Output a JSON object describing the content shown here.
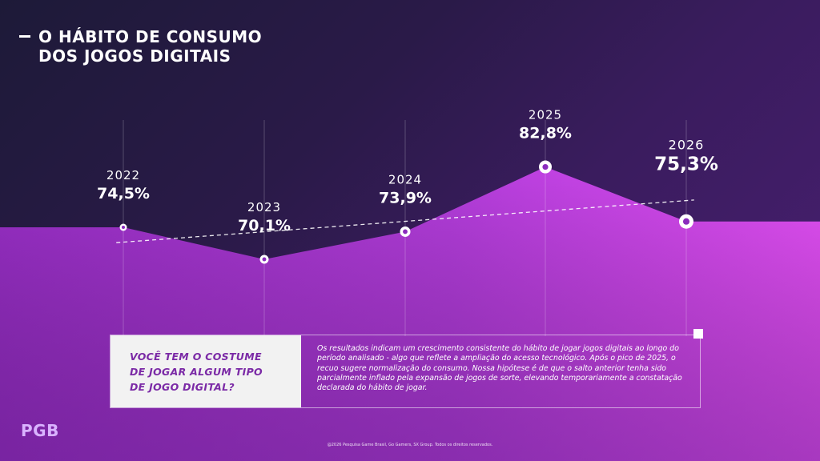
{
  "title": {
    "line1": "O HÁBITO DE CONSUMO",
    "line2": "DOS JOGOS DIGITAIS"
  },
  "chart_data": {
    "type": "area",
    "x": [
      "2022",
      "2023",
      "2024",
      "2025",
      "2026"
    ],
    "values": [
      74.5,
      70.1,
      73.9,
      82.8,
      75.3
    ],
    "labels": [
      "74,5%",
      "70,1%",
      "73,9%",
      "82,8%",
      "75,3%"
    ],
    "trendline": true,
    "grid": false,
    "colors": {
      "area": "#b03fd8",
      "area_light": "#e04ef5",
      "line": "#ffffff"
    }
  },
  "info": {
    "question_lines": [
      "VOCÊ TEM O COSTUME",
      "DE JOGAR ALGUM TIPO",
      "DE JOGO DIGITAL?"
    ],
    "body": "Os resultados indicam um crescimento consistente do hábito de jogar jogos digitais ao longo do período analisado - algo que reflete a ampliação do acesso tecnológico. Após o pico de 2025, o recuo sugere normalização do consumo. Nossa hipótese é de que o salto anterior tenha sido parcialmente inflado pela expansão de jogos de sorte, elevando temporariamente a constatação declarada do hábito de jogar."
  },
  "logo": "PGB",
  "footer": "@2026 Pesquisa Game Brasil, Go Gamers, SX Group. Todos os direitos reservados.",
  "icons": {
    "title_marker": "dash-icon",
    "box_corner": "square-icon"
  }
}
